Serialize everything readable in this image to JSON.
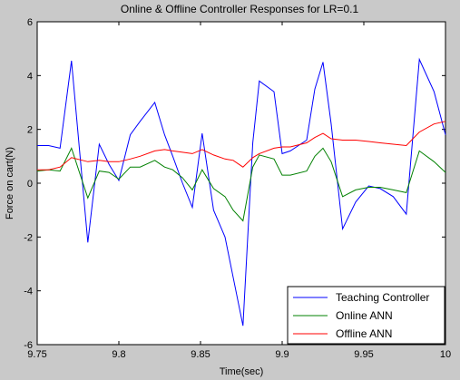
{
  "chart_data": {
    "type": "line",
    "title": "Online & Offline Controller Responses for LR=0.1",
    "xlabel": "Time(sec)",
    "ylabel": "Force on cart(N)",
    "xlim": [
      9.75,
      10
    ],
    "ylim": [
      -6,
      6
    ],
    "xticks": [
      "9.75",
      "9.8",
      "9.85",
      "9.9",
      "9.95",
      "10"
    ],
    "yticks": [
      "-6",
      "-4",
      "-2",
      "0",
      "2",
      "4",
      "6"
    ],
    "grid": false,
    "legend_position": "bottom-right",
    "x": [
      9.75,
      9.757,
      9.764,
      9.771,
      9.781,
      9.788,
      9.794,
      9.8,
      9.807,
      9.813,
      9.822,
      9.828,
      9.833,
      9.839,
      9.845,
      9.851,
      9.858,
      9.865,
      9.87,
      9.876,
      9.882,
      9.886,
      9.895,
      9.9,
      9.905,
      9.915,
      9.92,
      9.925,
      9.93,
      9.937,
      9.945,
      9.953,
      9.96,
      9.968,
      9.976,
      9.984,
      9.993,
      10.0
    ],
    "series": [
      {
        "name": "Teaching Controller",
        "color": "#0000ff",
        "values": [
          1.4,
          1.4,
          1.3,
          4.55,
          -2.2,
          1.45,
          0.7,
          0.1,
          1.8,
          2.3,
          3.0,
          1.8,
          1.0,
          0.0,
          -0.9,
          1.85,
          -1.0,
          -2.0,
          -3.5,
          -5.3,
          1.5,
          3.8,
          3.4,
          1.1,
          1.2,
          1.6,
          3.5,
          4.5,
          2.2,
          -1.7,
          -0.7,
          -0.1,
          -0.2,
          -0.5,
          -1.15,
          4.6,
          3.4,
          1.8
        ]
      },
      {
        "name": "Online ANN",
        "color": "#008000",
        "values": [
          0.45,
          0.5,
          0.45,
          1.3,
          -0.55,
          0.45,
          0.4,
          0.15,
          0.6,
          0.6,
          0.85,
          0.6,
          0.5,
          0.2,
          -0.25,
          0.5,
          -0.2,
          -0.5,
          -1.0,
          -1.4,
          0.6,
          1.05,
          0.9,
          0.3,
          0.3,
          0.45,
          1.0,
          1.3,
          0.8,
          -0.5,
          -0.25,
          -0.15,
          -0.15,
          -0.25,
          -0.35,
          1.2,
          0.8,
          0.4
        ]
      },
      {
        "name": "Offline ANN",
        "color": "#ff0000",
        "values": [
          0.5,
          0.5,
          0.6,
          0.95,
          0.8,
          0.85,
          0.8,
          0.8,
          0.9,
          1.0,
          1.2,
          1.25,
          1.2,
          1.15,
          1.1,
          1.25,
          1.05,
          0.9,
          0.85,
          0.6,
          0.95,
          1.1,
          1.3,
          1.35,
          1.35,
          1.5,
          1.7,
          1.85,
          1.65,
          1.6,
          1.6,
          1.55,
          1.5,
          1.45,
          1.4,
          1.9,
          2.2,
          2.3
        ]
      }
    ]
  }
}
